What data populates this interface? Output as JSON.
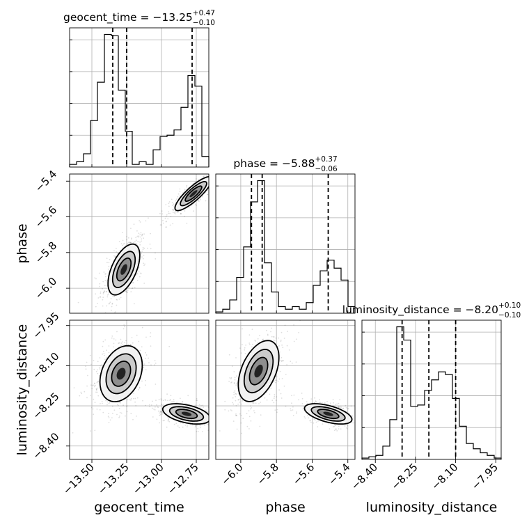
{
  "chart_data": {
    "type": "corner",
    "grid": true,
    "parameters": [
      {
        "name": "geocent_time",
        "xlabel": "geocent_time",
        "ylabel": "",
        "range": [
          -13.66,
          -12.66
        ],
        "ticks": [
          -13.5,
          -13.25,
          -13.0,
          -12.75
        ],
        "tick_labels": [
          "−13.50",
          "−13.25",
          "−13.00",
          "−12.75"
        ],
        "title_main": "geocent_time = −13.25",
        "title_sup": "+0.47",
        "title_sub": "−0.10",
        "quantiles": [
          -13.35,
          -13.25,
          -12.78
        ],
        "hist": [
          0.02,
          0.04,
          0.1,
          0.35,
          0.64,
          1.0,
          0.99,
          0.58,
          0.27,
          0.02,
          0.04,
          0.02,
          0.13,
          0.23,
          0.24,
          0.28,
          0.45,
          0.69,
          0.61,
          0.08
        ]
      },
      {
        "name": "phase",
        "xlabel": "phase",
        "ylabel": "phase",
        "range": [
          -6.14,
          -5.36
        ],
        "ticks": [
          -6.0,
          -5.8,
          -5.6,
          -5.4
        ],
        "tick_labels": [
          "−6.0",
          "−5.8",
          "−5.6",
          "−5.4"
        ],
        "title_main": "phase = −5.88",
        "title_sup": "+0.37",
        "title_sub": "−0.06",
        "quantiles": [
          -5.94,
          -5.88,
          -5.51
        ],
        "hist": [
          0.01,
          0.03,
          0.1,
          0.27,
          0.5,
          0.84,
          1.0,
          0.38,
          0.16,
          0.05,
          0.03,
          0.05,
          0.03,
          0.08,
          0.21,
          0.32,
          0.4,
          0.34,
          0.25,
          0.05
        ]
      },
      {
        "name": "luminosity_distance",
        "xlabel": "luminosity_distance",
        "ylabel": "luminosity_distance",
        "range": [
          -8.45,
          -7.93
        ],
        "ticks": [
          -8.4,
          -8.25,
          -8.1,
          -7.95
        ],
        "tick_labels": [
          "−8.40",
          "−8.25",
          "−8.10",
          "−7.95"
        ],
        "title_main": "luminosity_distance = −8.20",
        "title_sup": "+0.10",
        "title_sub": "−0.10",
        "quantiles": [
          -8.3,
          -8.2,
          -8.1
        ],
        "hist": [
          0.01,
          0.02,
          0.03,
          0.1,
          0.3,
          1.0,
          0.9,
          0.4,
          0.41,
          0.52,
          0.6,
          0.66,
          0.64,
          0.46,
          0.25,
          0.12,
          0.08,
          0.05,
          0.03,
          0.01
        ]
      }
    ],
    "contours": [
      {
        "x": "geocent_time",
        "y": "phase",
        "modes": [
          {
            "cx": -13.27,
            "cy": -5.895,
            "sx": 0.06,
            "sy": 0.075,
            "rho": 0.55,
            "w": 0.55
          },
          {
            "cx": -12.77,
            "cy": -5.47,
            "sx": 0.07,
            "sy": 0.05,
            "rho": 0.85,
            "w": 0.45
          }
        ]
      },
      {
        "x": "geocent_time",
        "y": "luminosity_distance",
        "modes": [
          {
            "cx": -13.29,
            "cy": -8.13,
            "sx": 0.08,
            "sy": 0.055,
            "rho": 0.3,
            "w": 0.55
          },
          {
            "cx": -12.82,
            "cy": -8.28,
            "sx": 0.09,
            "sy": 0.02,
            "rho": -0.45,
            "w": 0.45
          }
        ]
      },
      {
        "x": "phase",
        "y": "luminosity_distance",
        "modes": [
          {
            "cx": -5.9,
            "cy": -8.12,
            "sx": 0.06,
            "sy": 0.06,
            "rho": 0.45,
            "w": 0.55
          },
          {
            "cx": -5.51,
            "cy": -8.28,
            "sx": 0.07,
            "sy": 0.02,
            "rho": -0.55,
            "w": 0.45
          }
        ]
      }
    ]
  }
}
